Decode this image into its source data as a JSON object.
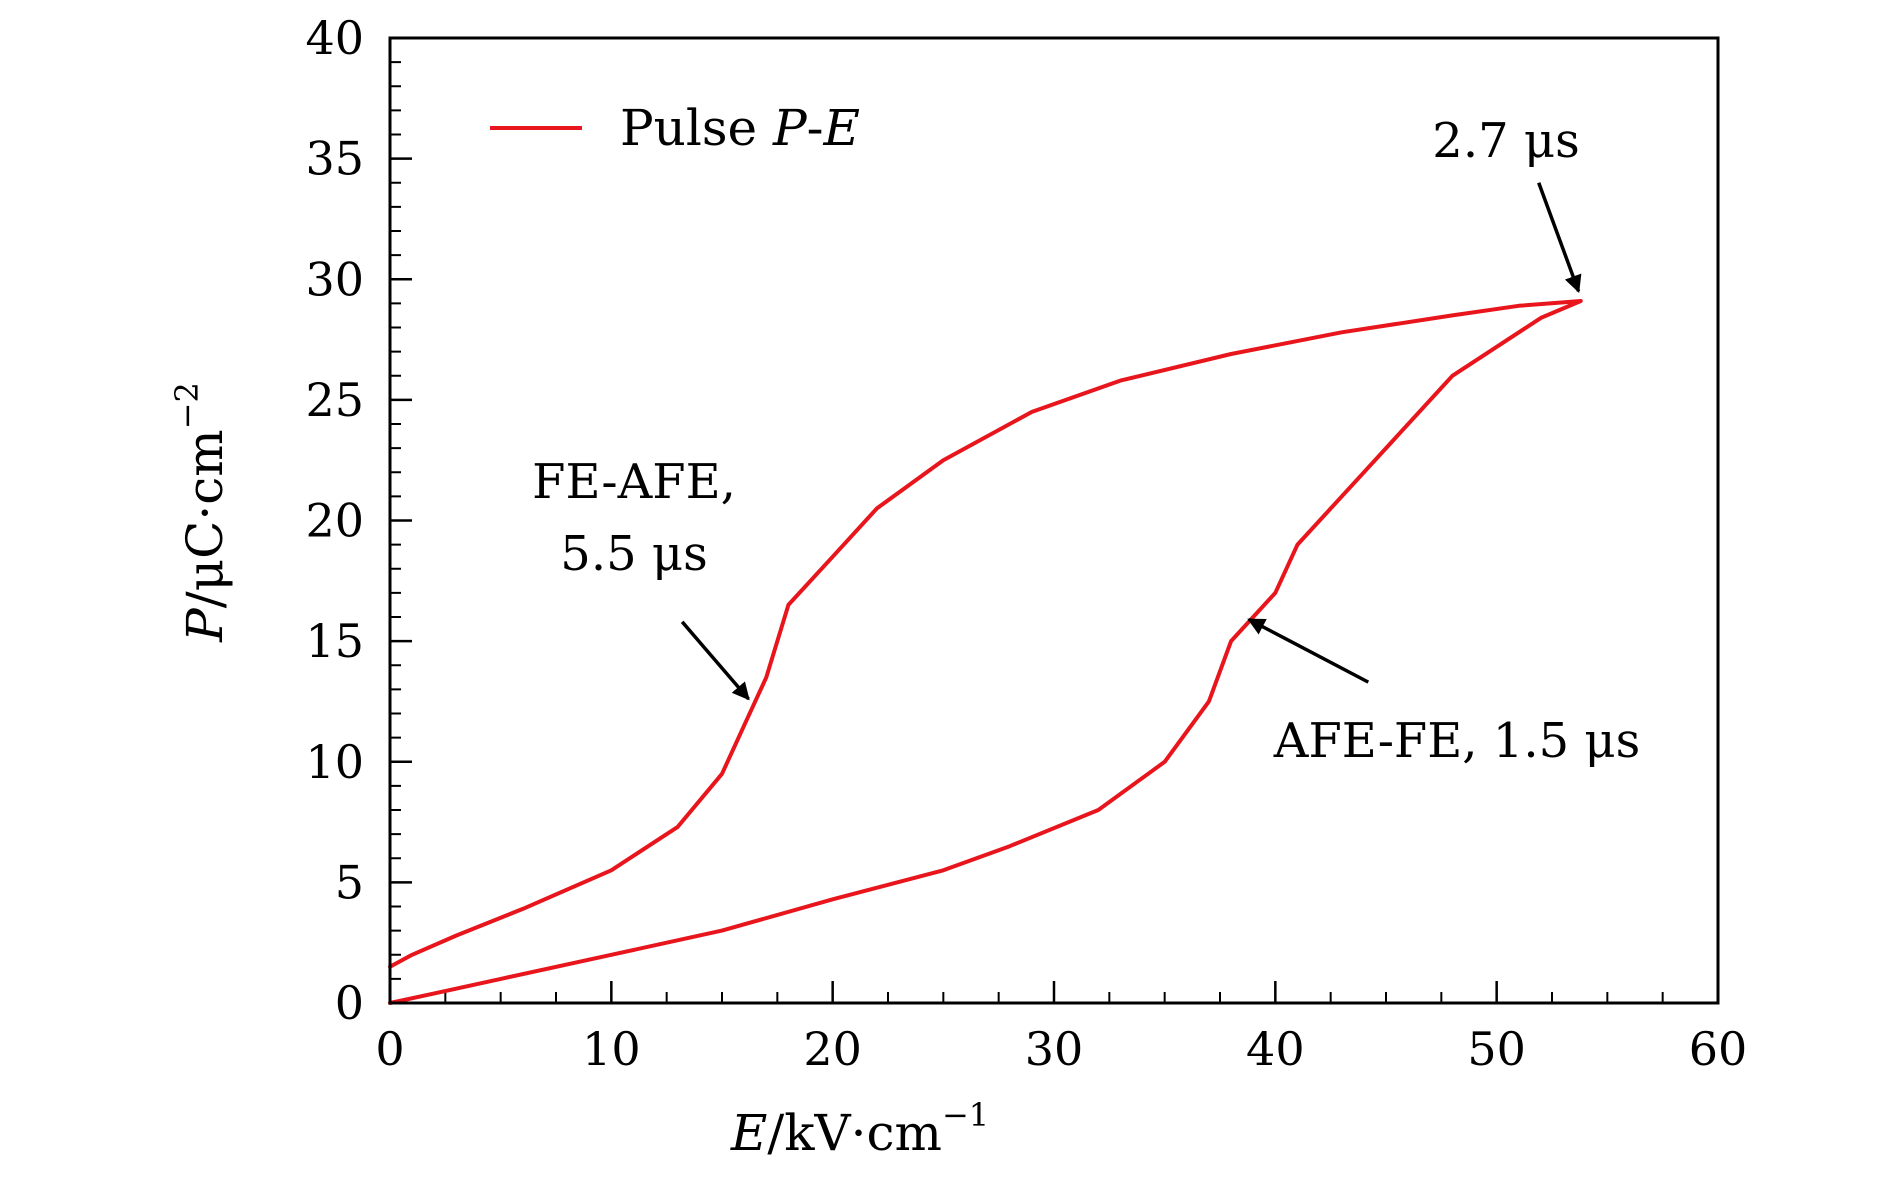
{
  "chart_data": {
    "type": "line",
    "xlabel_var": "E",
    "xlabel_rest": "/kV·cm",
    "xlabel_sup": "−1",
    "ylabel_var": "P",
    "ylabel_rest": "/μC·cm",
    "ylabel_sup": "−2",
    "xlim": [
      0,
      60
    ],
    "ylim": [
      0,
      40
    ],
    "x_ticks": [
      0,
      10,
      20,
      30,
      40,
      50,
      60
    ],
    "y_ticks": [
      0,
      5,
      10,
      15,
      20,
      25,
      30,
      35,
      40
    ],
    "x_tick_labels": [
      "0",
      "10",
      "20",
      "30",
      "40",
      "50",
      "60"
    ],
    "y_tick_labels": [
      "0",
      "5",
      "10",
      "15",
      "20",
      "25",
      "30",
      "35",
      "40"
    ],
    "legend": {
      "position": "top-left",
      "label_plain": "Pulse ",
      "label_italic_1": "P",
      "label_dash": "-",
      "label_italic_2": "E"
    },
    "series": [
      {
        "name": "Pulse P-E",
        "color": "#e8161c",
        "x": [
          0,
          1,
          3,
          6,
          10,
          13,
          15,
          16,
          17,
          18,
          20,
          22,
          25,
          29,
          33,
          38,
          43,
          48,
          51,
          53.8,
          52,
          48,
          44,
          41,
          40,
          39,
          38,
          37,
          35,
          32,
          28,
          25,
          20,
          15,
          10,
          5,
          2,
          0
        ],
        "y": [
          1.5,
          2.0,
          2.8,
          3.9,
          5.5,
          7.3,
          9.5,
          11.5,
          13.5,
          16.5,
          18.5,
          20.5,
          22.5,
          24.5,
          25.8,
          26.9,
          27.8,
          28.5,
          28.9,
          29.1,
          28.4,
          26.0,
          22.0,
          19.0,
          17.0,
          16.0,
          15.0,
          12.5,
          10.0,
          8.0,
          6.5,
          5.5,
          4.3,
          3.0,
          2.0,
          1.0,
          0.4,
          0
        ]
      }
    ],
    "annotations": [
      {
        "lines": [
          "2.7 μs"
        ],
        "arrow_tail": [
          51.9,
          34.0
        ],
        "arrow_head": [
          53.7,
          29.5
        ]
      },
      {
        "lines": [
          "FE-AFE,",
          "5.5 μs"
        ],
        "arrow_tail": [
          13.2,
          15.8
        ],
        "arrow_head": [
          16.2,
          12.6
        ]
      },
      {
        "lines": [
          "AFE-FE, 1.5 μs"
        ],
        "arrow_tail": [
          44.2,
          13.3
        ],
        "arrow_head": [
          38.8,
          15.9
        ]
      }
    ],
    "grid": false
  }
}
